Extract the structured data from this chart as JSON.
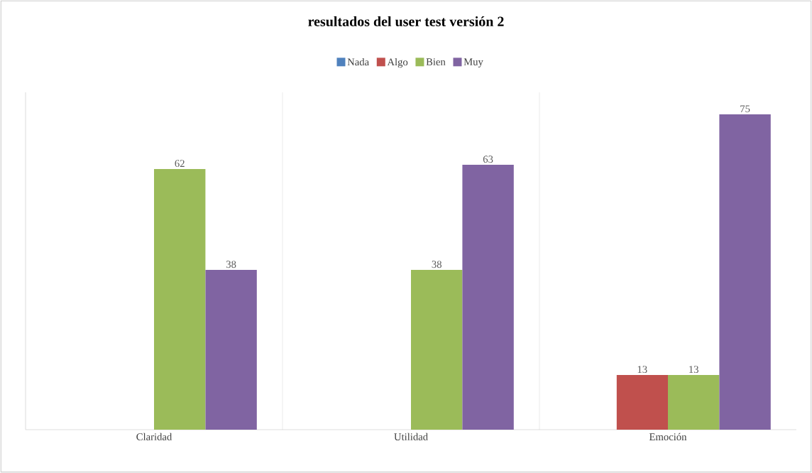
{
  "chart_data": {
    "type": "bar",
    "title": "resultados del user test versión 2",
    "categories": [
      "Claridad",
      "Utilidad",
      "Emoción"
    ],
    "series": [
      {
        "name": "Nada",
        "color": "#4f81bd",
        "values": [
          null,
          null,
          null
        ]
      },
      {
        "name": "Algo",
        "color": "#c0504d",
        "values": [
          null,
          null,
          13
        ]
      },
      {
        "name": "Bien",
        "color": "#9bbb59",
        "values": [
          62,
          38,
          13
        ]
      },
      {
        "name": "Muy",
        "color": "#8064a2",
        "values": [
          38,
          63,
          75
        ]
      }
    ],
    "data_labels": true,
    "grid": "x",
    "legend": "top"
  }
}
